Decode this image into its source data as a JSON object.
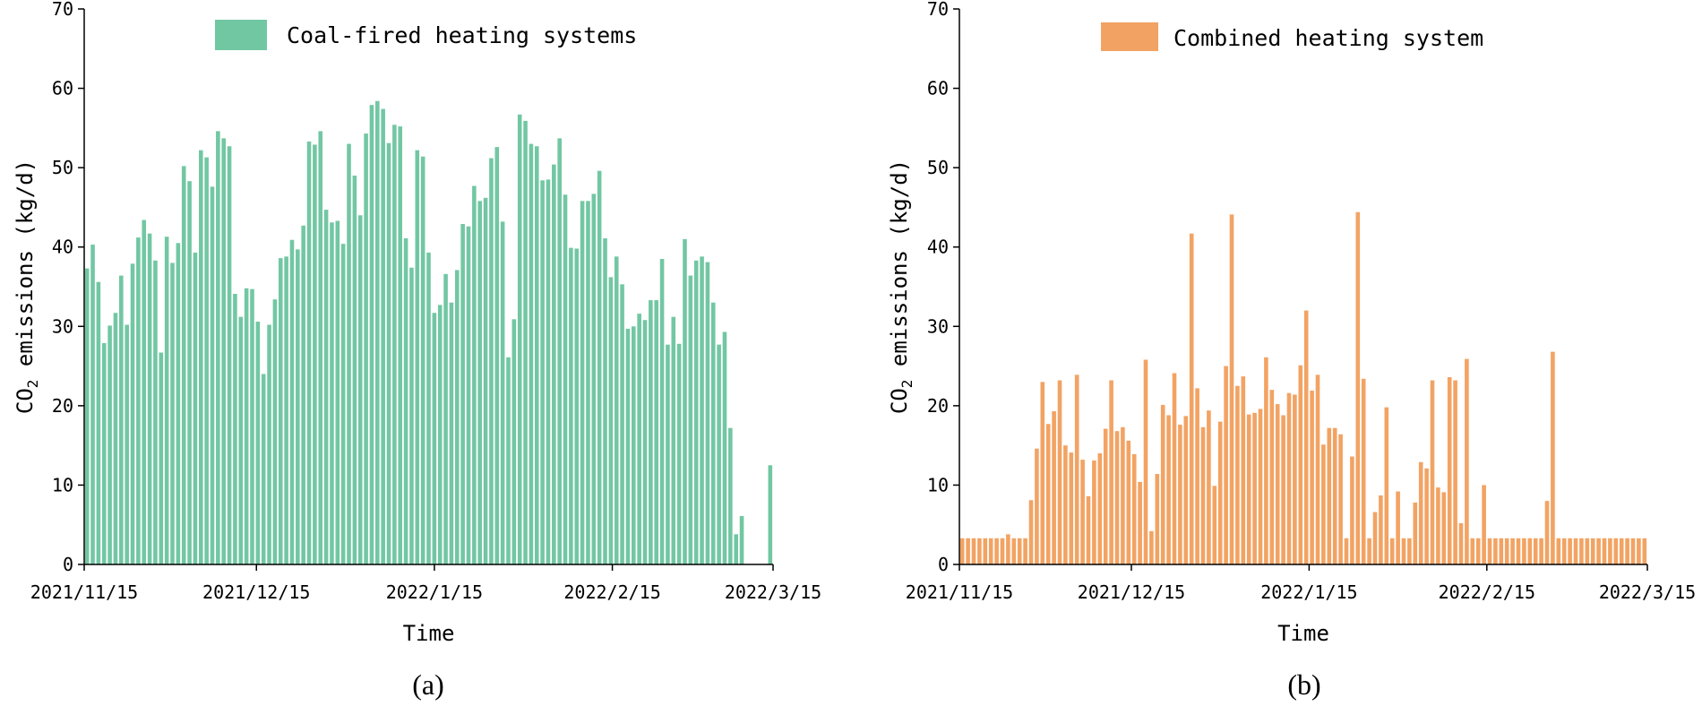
{
  "chart_data": [
    {
      "type": "bar",
      "caption": "(a)",
      "legend": "Coal-fired heating systems",
      "color": "#72C7A3",
      "xlabel": "Time",
      "ylabel_main": "CO",
      "ylabel_sub": "2",
      "ylabel_rest": " emissions (kg/d)",
      "ylim": [
        0,
        70
      ],
      "yticks": [
        0,
        10,
        20,
        30,
        40,
        50,
        60,
        70
      ],
      "xlim_days": [
        0,
        120
      ],
      "xticks": [
        {
          "day": 0,
          "label": "2021/11/15"
        },
        {
          "day": 30,
          "label": "2021/12/15"
        },
        {
          "day": 61,
          "label": "2022/1/15"
        },
        {
          "day": 92,
          "label": "2022/2/15"
        },
        {
          "day": 120,
          "label": "2022/3/15"
        }
      ],
      "values": [
        37.3,
        40.3,
        35.6,
        27.9,
        30.1,
        31.7,
        36.4,
        30.2,
        37.9,
        41.2,
        43.4,
        41.7,
        38.3,
        26.7,
        41.3,
        38.0,
        40.5,
        50.2,
        48.3,
        39.3,
        52.2,
        51.3,
        47.6,
        54.6,
        53.7,
        52.7,
        34.1,
        31.2,
        34.8,
        34.7,
        30.6,
        24.0,
        30.2,
        33.4,
        38.6,
        38.8,
        40.9,
        39.7,
        42.7,
        53.3,
        52.9,
        54.6,
        44.7,
        43.1,
        43.3,
        40.4,
        53.0,
        49.0,
        44.0,
        54.3,
        57.9,
        58.4,
        57.4,
        53.1,
        55.4,
        55.2,
        41.1,
        37.4,
        52.2,
        51.4,
        39.3,
        31.7,
        32.7,
        36.6,
        33.0,
        37.1,
        42.9,
        42.6,
        47.7,
        45.8,
        46.2,
        51.2,
        52.6,
        43.2,
        26.1,
        30.9,
        56.7,
        55.9,
        53.0,
        52.7,
        48.4,
        48.5,
        50.4,
        53.7,
        46.6,
        39.9,
        39.8,
        45.8,
        45.8,
        46.7,
        49.6,
        41.1,
        36.2,
        38.8,
        35.3,
        29.7,
        30.0,
        31.6,
        30.8,
        33.3,
        33.3,
        38.5,
        27.7,
        31.2,
        27.8,
        41.0,
        36.4,
        38.3,
        38.8,
        38.1,
        33.0,
        27.7,
        29.3,
        17.2,
        3.8,
        6.1,
        0.0,
        0.0,
        0.0,
        0.0,
        12.5
      ]
    },
    {
      "type": "bar",
      "caption": "(b)",
      "legend": "Combined heating system",
      "color": "#F2A363",
      "xlabel": "Time",
      "ylabel_main": "CO",
      "ylabel_sub": "2",
      "ylabel_rest": " emissions (kg/d)",
      "ylim": [
        0,
        70
      ],
      "yticks": [
        0,
        10,
        20,
        30,
        40,
        50,
        60,
        70
      ],
      "xlim_days": [
        0,
        120
      ],
      "xticks": [
        {
          "day": 0,
          "label": "2021/11/15"
        },
        {
          "day": 30,
          "label": "2021/12/15"
        },
        {
          "day": 61,
          "label": "2022/1/15"
        },
        {
          "day": 92,
          "label": "2022/2/15"
        },
        {
          "day": 120,
          "label": "2022/3/15"
        }
      ],
      "values": [
        3.3,
        3.3,
        3.3,
        3.3,
        3.3,
        3.3,
        3.3,
        3.3,
        3.8,
        3.3,
        3.3,
        3.3,
        8.1,
        14.6,
        23.0,
        17.7,
        19.3,
        23.2,
        15.0,
        14.1,
        23.9,
        13.2,
        8.6,
        13.1,
        14.0,
        17.1,
        23.2,
        16.8,
        17.3,
        15.6,
        13.9,
        10.4,
        25.8,
        4.2,
        11.4,
        20.1,
        18.8,
        24.1,
        17.6,
        18.7,
        41.7,
        22.2,
        17.3,
        19.4,
        9.9,
        18.0,
        25.0,
        44.1,
        22.5,
        23.7,
        18.9,
        19.1,
        19.6,
        26.1,
        22.0,
        20.2,
        18.8,
        21.6,
        21.4,
        25.1,
        32.0,
        21.9,
        23.9,
        15.1,
        17.2,
        17.2,
        16.4,
        3.3,
        13.6,
        44.4,
        23.4,
        3.3,
        6.6,
        8.7,
        19.8,
        3.3,
        9.2,
        3.3,
        3.3,
        7.8,
        12.9,
        12.1,
        23.2,
        9.7,
        9.1,
        23.6,
        23.2,
        5.2,
        25.9,
        3.3,
        3.3,
        10.0,
        3.3,
        3.3,
        3.3,
        3.3,
        3.3,
        3.3,
        3.3,
        3.3,
        3.3,
        3.3,
        8.0,
        26.8,
        3.3,
        3.3,
        3.3,
        3.3,
        3.3,
        3.3,
        3.3,
        3.3,
        3.3,
        3.3,
        3.3,
        3.3,
        3.3,
        3.3,
        3.3,
        3.3
      ]
    }
  ]
}
